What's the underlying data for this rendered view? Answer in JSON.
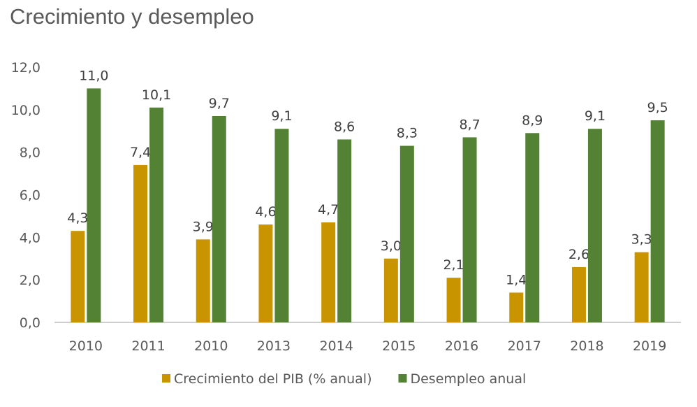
{
  "colors": {
    "series_1": "#C89400",
    "series_2": "#548235",
    "axis": "#bfbfbf",
    "text": "#595959"
  },
  "chart_data": {
    "type": "bar",
    "title": "Crecimiento y desempleo",
    "xlabel": "",
    "ylabel": "",
    "categories": [
      "2010",
      "2011",
      "2010",
      "2013",
      "2014",
      "2015",
      "2016",
      "2017",
      "2018",
      "2019"
    ],
    "series": [
      {
        "name": "Crecimiento del PIB (% anual)",
        "values": [
          4.3,
          7.4,
          3.9,
          4.6,
          4.7,
          3.0,
          2.1,
          1.4,
          2.6,
          3.3
        ],
        "labels": [
          "4,3",
          "7,4",
          "3,9",
          "4,6",
          "4,7",
          "3,0",
          "2,1",
          "1,4",
          "2,6",
          "3,3"
        ]
      },
      {
        "name": "Desempleo anual",
        "values": [
          11.0,
          10.1,
          9.7,
          9.1,
          8.6,
          8.3,
          8.7,
          8.9,
          9.1,
          9.5
        ],
        "labels": [
          "11,0",
          "10,1",
          "9,7",
          "9,1",
          "8,6",
          "8,3",
          "8,7",
          "8,9",
          "9,1",
          "9,5"
        ]
      }
    ],
    "ylim": [
      0,
      12
    ],
    "yticks": [
      "0,0",
      "2,0",
      "4,0",
      "6,0",
      "8,0",
      "10,0",
      "12,0"
    ],
    "grid": false,
    "legend_position": "bottom"
  }
}
